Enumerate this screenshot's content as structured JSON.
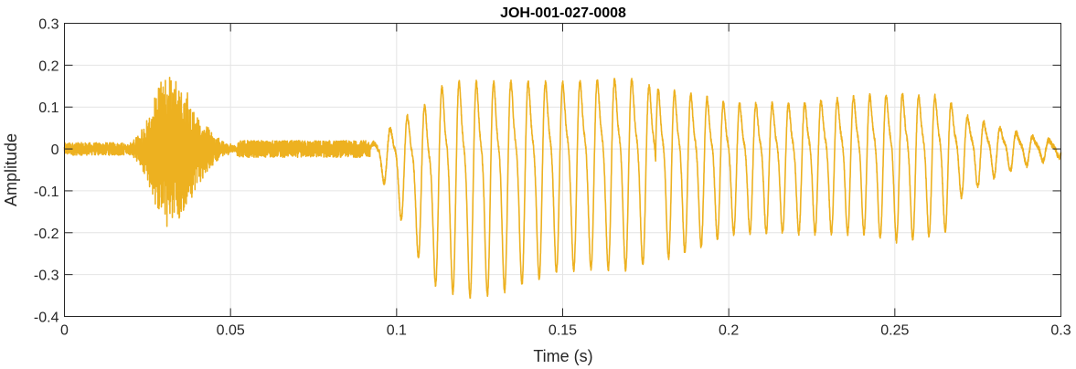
{
  "chart_data": {
    "type": "line",
    "title": "JOH-001-027-0008",
    "xlabel": "Time (s)",
    "ylabel": "Amplitude",
    "xlim": [
      0,
      0.3
    ],
    "ylim": [
      -0.4,
      0.3
    ],
    "xticks": [
      0,
      0.05,
      0.1,
      0.15,
      0.2,
      0.25,
      0.3
    ],
    "xtick_labels": [
      "0",
      "0.05",
      "0.1",
      "0.15",
      "0.2",
      "0.25",
      "0.3"
    ],
    "yticks": [
      -0.4,
      -0.3,
      -0.2,
      -0.1,
      0,
      0.1,
      0.2,
      0.3
    ],
    "ytick_labels": [
      "-0.4",
      "-0.3",
      "-0.2",
      "-0.1",
      "0",
      "0.1",
      "0.2",
      "0.3"
    ],
    "grid": true,
    "series": [
      {
        "color": "#EDB120",
        "description_segments": [
          {
            "x_range": [
              0,
              0.018
            ],
            "kind": "noise",
            "peak": 0.015
          },
          {
            "x_range": [
              0.018,
              0.052
            ],
            "kind": "noise-burst",
            "peak_max": 0.16,
            "trough_min": -0.2,
            "center": 0.031
          },
          {
            "x_range": [
              0.052,
              0.092
            ],
            "kind": "noise",
            "peak": 0.02
          },
          {
            "x_range": [
              0.092,
              0.178
            ],
            "kind": "voiced-periodic",
            "period": 0.0052,
            "envelope_pos": [
              [
                0.092,
                0.01
              ],
              [
                0.1,
                0.09
              ],
              [
                0.11,
                0.17
              ],
              [
                0.115,
                0.23
              ],
              [
                0.13,
                0.23
              ],
              [
                0.15,
                0.22
              ],
              [
                0.17,
                0.23
              ],
              [
                0.178,
                0.2
              ]
            ],
            "envelope_neg": [
              [
                0.092,
                -0.01
              ],
              [
                0.1,
                -0.15
              ],
              [
                0.105,
                -0.24
              ],
              [
                0.11,
                -0.33
              ],
              [
                0.12,
                -0.37
              ],
              [
                0.13,
                -0.36
              ],
              [
                0.15,
                -0.3
              ],
              [
                0.17,
                -0.3
              ],
              [
                0.178,
                -0.28
              ]
            ]
          },
          {
            "x_range": [
              0.178,
              0.3
            ],
            "kind": "voiced-periodic",
            "period": 0.0049,
            "envelope_pos": [
              [
                0.178,
                0.2
              ],
              [
                0.19,
                0.18
              ],
              [
                0.2,
                0.15
              ],
              [
                0.22,
                0.15
              ],
              [
                0.24,
                0.17
              ],
              [
                0.25,
                0.18
              ],
              [
                0.265,
                0.17
              ],
              [
                0.27,
                0.11
              ],
              [
                0.28,
                0.07
              ],
              [
                0.29,
                0.04
              ],
              [
                0.3,
                0.02
              ]
            ],
            "envelope_neg": [
              [
                0.178,
                -0.28
              ],
              [
                0.19,
                -0.25
              ],
              [
                0.2,
                -0.21
              ],
              [
                0.22,
                -0.21
              ],
              [
                0.24,
                -0.21
              ],
              [
                0.25,
                -0.23
              ],
              [
                0.265,
                -0.21
              ],
              [
                0.27,
                -0.12
              ],
              [
                0.28,
                -0.07
              ],
              [
                0.29,
                -0.04
              ],
              [
                0.3,
                -0.02
              ]
            ]
          }
        ]
      }
    ]
  }
}
